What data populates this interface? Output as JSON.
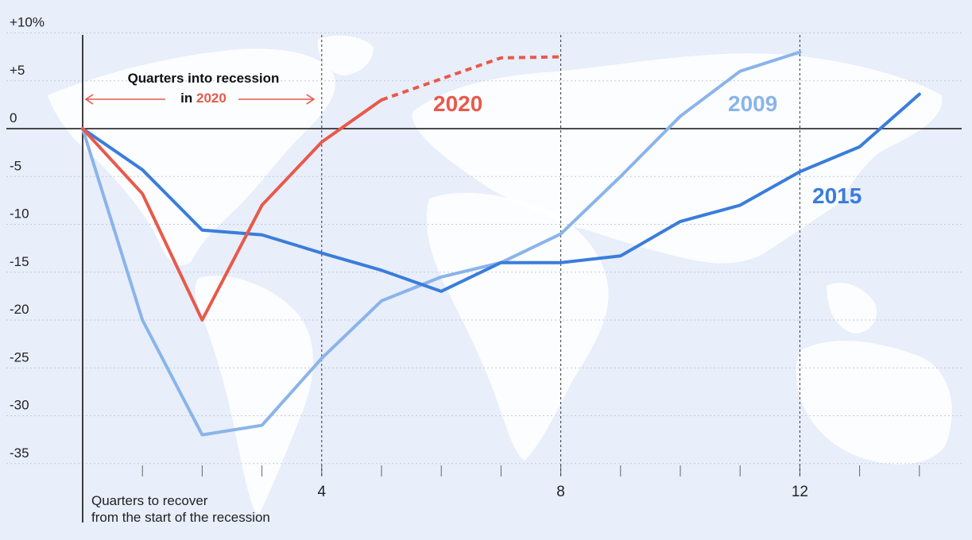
{
  "chart_data": {
    "type": "line",
    "title": "",
    "xlabel": "Quarters to recover from the start of the recession",
    "xlabel_lines": [
      "Quarters to recover",
      "from the start of the recession"
    ],
    "ylabel": "",
    "x_ticks": [
      4,
      8,
      12
    ],
    "y_ticks": [
      {
        "value": 10,
        "label": "+10%"
      },
      {
        "value": 5,
        "label": "+5"
      },
      {
        "value": 0,
        "label": "0"
      },
      {
        "value": -5,
        "label": "-5"
      },
      {
        "value": -10,
        "label": "-10"
      },
      {
        "value": -15,
        "label": "-15"
      },
      {
        "value": -20,
        "label": "-20"
      },
      {
        "value": -25,
        "label": "-25"
      },
      {
        "value": -30,
        "label": "-30"
      },
      {
        "value": -35,
        "label": "-35"
      }
    ],
    "xlim": [
      0,
      14
    ],
    "ylim": [
      -38,
      10
    ],
    "grid": true,
    "series": [
      {
        "name": "2009",
        "color": "#8ab4ea",
        "x": [
          0,
          1,
          2,
          3,
          4,
          5,
          6,
          7,
          8,
          9,
          10,
          11,
          12
        ],
        "y": [
          0,
          -20,
          -32,
          -31,
          -24,
          -18,
          -15.5,
          -14,
          -11,
          -5,
          1.3,
          6,
          8
        ],
        "dashed_from": null
      },
      {
        "name": "2015",
        "color": "#3a7ddb",
        "x": [
          0,
          1,
          2,
          3,
          4,
          5,
          6,
          7,
          8,
          9,
          10,
          11,
          12,
          13,
          14
        ],
        "y": [
          0,
          -4.3,
          -10.6,
          -11.1,
          -13,
          -14.8,
          -17,
          -14,
          -14,
          -13.3,
          -9.7,
          -8,
          -4.5,
          -1.9,
          3.6
        ],
        "dashed_from": null
      },
      {
        "name": "2020",
        "color": "#e8594a",
        "x": [
          0,
          1,
          2,
          3,
          4,
          5,
          6,
          7,
          8
        ],
        "y": [
          0,
          -6.8,
          -20,
          -8,
          -1.4,
          3,
          5.2,
          7.4,
          7.5
        ],
        "dashed_from": 5
      }
    ],
    "annotation": {
      "title": "Quarters into recession",
      "prefix": "in ",
      "highlight": "2020",
      "span_x": [
        0,
        4
      ]
    },
    "colors": {
      "background": "#e8eefa",
      "axis": "#111111",
      "highlight": "#e8594a"
    }
  }
}
